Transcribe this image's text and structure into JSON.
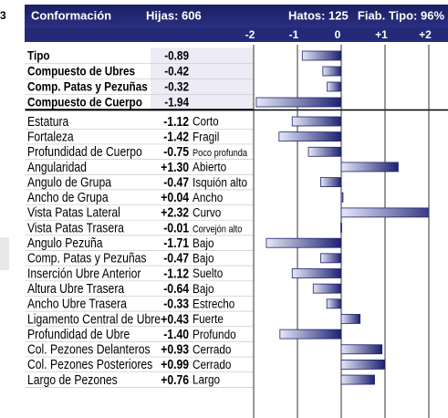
{
  "chart_data": {
    "type": "bar",
    "page_marker": "3",
    "title": "Conformación",
    "header_stats": [
      "Hijas: 606",
      "Hatos: 125",
      "Fiab. Tipo: 96%"
    ],
    "categories": [
      "Tipo",
      "Compuesto de Ubres",
      "Comp. Patas y Pezuñas",
      "Compuesto de Cuerpo",
      "Estatura",
      "Fortaleza",
      "Profundidad de Cuerpo",
      "Angularidad",
      "Angulo de Grupa",
      "Ancho de Grupa",
      "Vista Patas Lateral",
      "Vista Patas Trasera",
      "Angulo Pezuña",
      "Comp. Patas y Pezuñas",
      "Inserción Ubre Anterior",
      "Altura Ubre Trasera",
      "Ancho Ubre Trasera",
      "Ligamento Central de Ubre",
      "Profundidad de Ubre",
      "Col. Pezones Delanteros",
      "Col. Pezones Posteriores",
      "Largo de Pezones"
    ],
    "values": [
      -0.89,
      -0.42,
      -0.32,
      -1.94,
      -1.12,
      -1.42,
      -0.75,
      1.3,
      -0.47,
      0.04,
      2.32,
      -0.01,
      -1.71,
      -0.47,
      -1.12,
      -0.64,
      -0.33,
      0.43,
      -1.4,
      0.93,
      0.99,
      0.76
    ],
    "value_labels": [
      "-0.89",
      "-0.42",
      "-0.32",
      "-1.94",
      "-1.12",
      "-1.42",
      "-0.75",
      "+1.30",
      "-0.47",
      "+0.04",
      "+2.32",
      "-0.01",
      "-1.71",
      "-0.47",
      "-1.12",
      "-0.64",
      "-0.33",
      "+0.43",
      "-1.40",
      "+0.93",
      "+0.99",
      "+0.76"
    ],
    "descriptors": [
      null,
      null,
      null,
      null,
      "Corto",
      "Fragil",
      "Poco profunda",
      "Abierto",
      "Isquión alto",
      "Ancho",
      "Curvo",
      "Corvejón alto",
      "Bajo",
      "Bajo",
      "Suelto",
      "Bajo",
      "Estrecho",
      "Fuerte",
      "Profundo",
      "Cerrado",
      "Cerrado",
      "Largo"
    ],
    "bold_rows": 4,
    "color": "#1c2170",
    "xlim": [
      -2,
      2
    ],
    "xticks": [
      -2,
      -1,
      0,
      {
        "value": 1,
        "label": "+1"
      },
      {
        "value": 2,
        "label": "+2"
      }
    ],
    "grid": true
  }
}
